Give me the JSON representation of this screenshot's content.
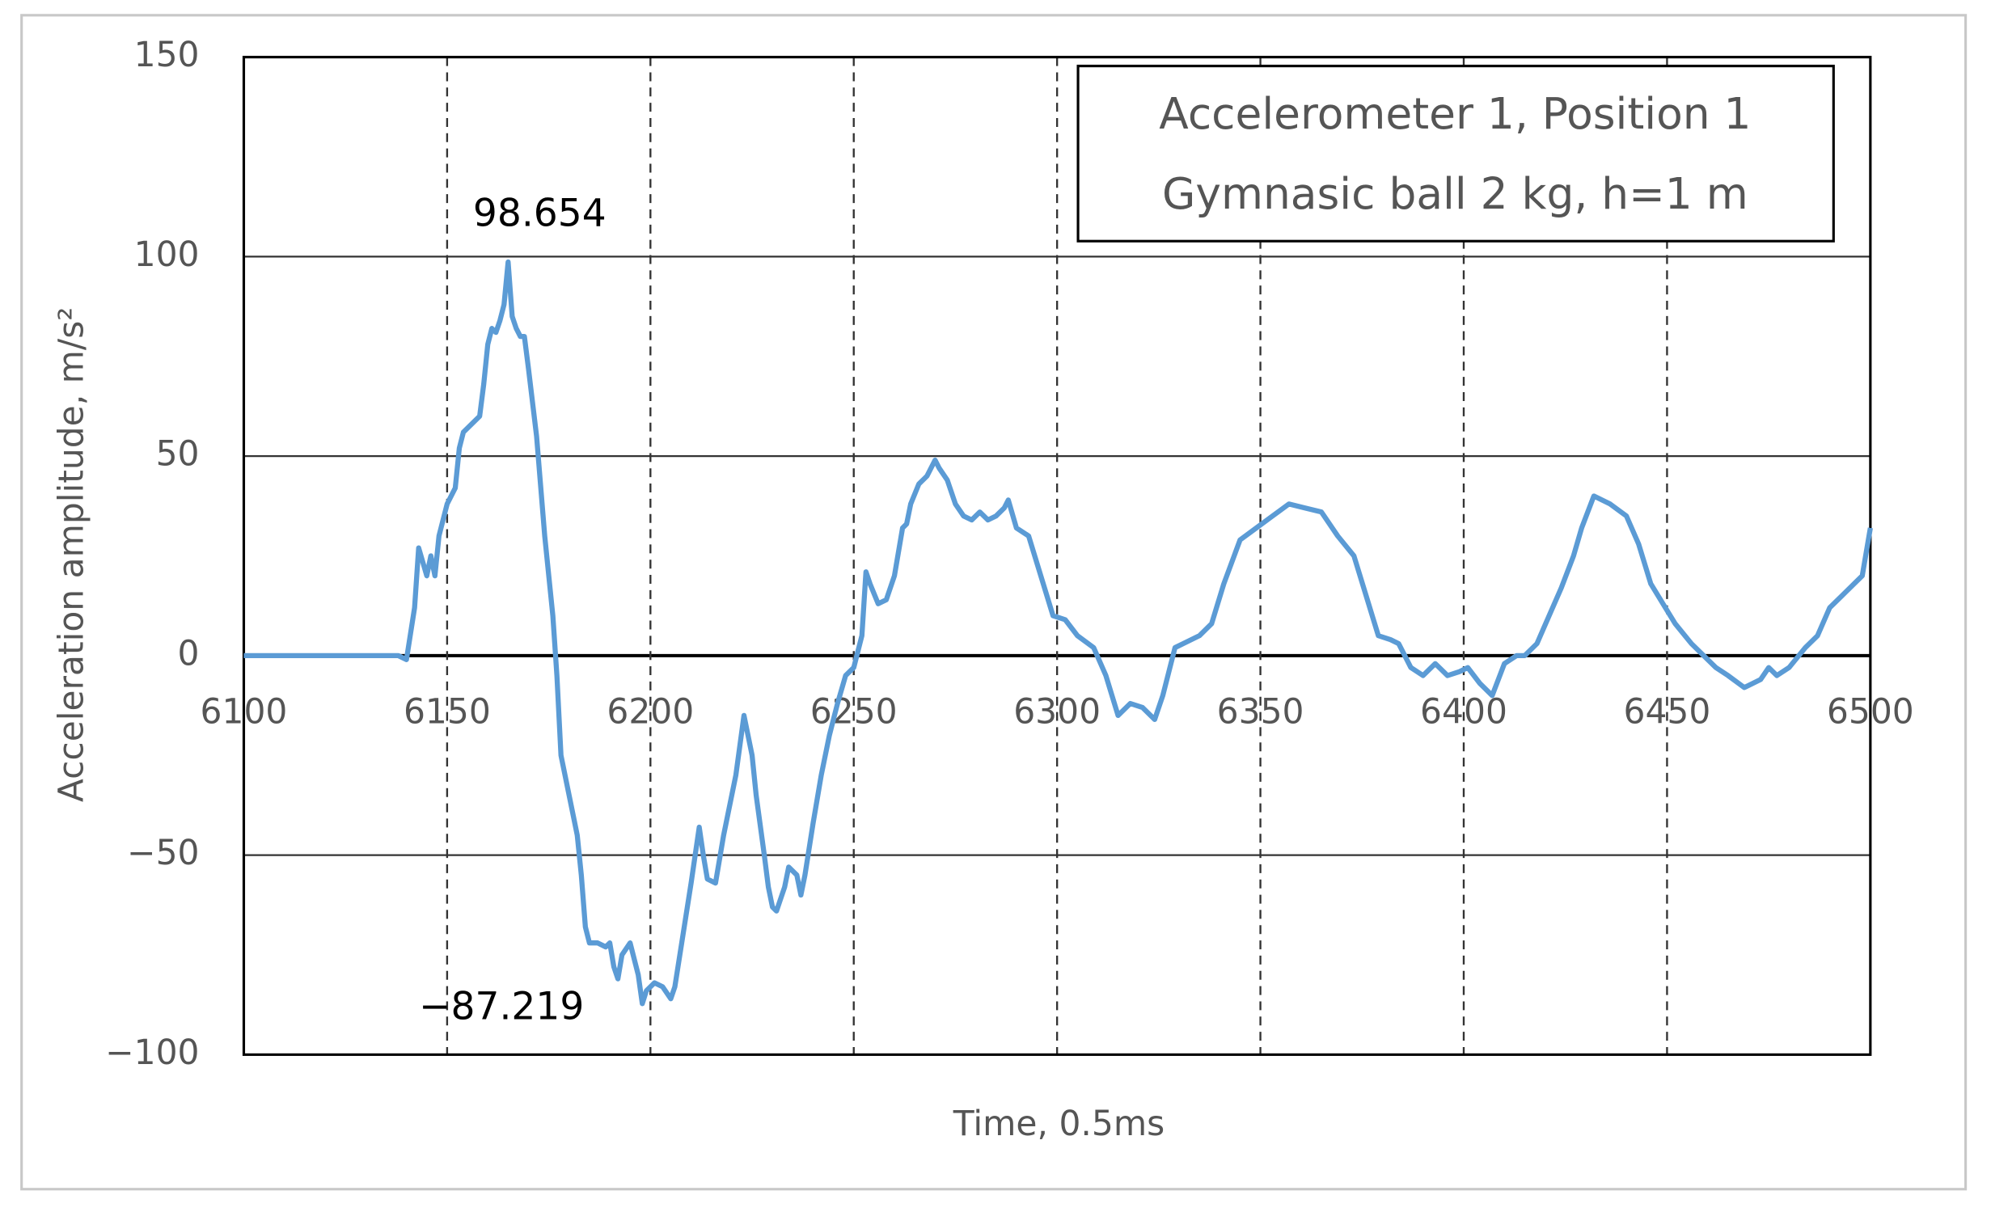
{
  "chart_data": {
    "type": "line",
    "title_lines": [
      "Accelerometer 1, Position 1",
      "Gymnasic ball 2 kg, h=1 m"
    ],
    "xlabel": "Time, 0.5ms",
    "ylabel": "Acceleration amplitude, m/s²",
    "annotations": [
      "98.654",
      "−87.219"
    ],
    "color": "#5b9bd5",
    "xlim": [
      6100,
      6500
    ],
    "xticks": [
      6100,
      6150,
      6200,
      6250,
      6300,
      6350,
      6400,
      6450,
      6500
    ],
    "ylim": [
      -100,
      150
    ],
    "yticks": [
      150,
      100,
      50,
      0,
      {
        "value": -50,
        "label": "−50"
      },
      {
        "value": -100,
        "label": "−100"
      }
    ],
    "grid": true,
    "x": [
      6100,
      6138,
      6140,
      6142,
      6143,
      6145,
      6146,
      6147,
      6148,
      6150,
      6151,
      6152,
      6153,
      6154,
      6156,
      6158,
      6159,
      6160,
      6161,
      6162,
      6163,
      6164,
      6165,
      6166,
      6167,
      6168,
      6169,
      6170,
      6172,
      6174,
      6176,
      6177,
      6178,
      6180,
      6182,
      6183,
      6184,
      6185,
      6187,
      6189,
      6190,
      6191,
      6192,
      6193,
      6195,
      6196,
      6197,
      6198,
      6199,
      6201,
      6203,
      6205,
      6206,
      6208,
      6210,
      6212,
      6213,
      6214,
      6216,
      6218,
      6219,
      6221,
      6223,
      6225,
      6226,
      6228,
      6229,
      6230,
      6231,
      6233,
      6234,
      6236,
      6237,
      6238,
      6240,
      6242,
      6244,
      6246,
      6248,
      6250,
      6252,
      6253,
      6254,
      6256,
      6258,
      6260,
      6262,
      6263,
      6264,
      6266,
      6268,
      6270,
      6271,
      6273,
      6275,
      6277,
      6279,
      6281,
      6283,
      6285,
      6287,
      6288,
      6290,
      6293,
      6296,
      6299,
      6302,
      6305,
      6309,
      6312,
      6315,
      6318,
      6321,
      6324,
      6326,
      6329,
      6331,
      6335,
      6338,
      6341,
      6345,
      6349,
      6353,
      6357,
      6361,
      6365,
      6369,
      6373,
      6376,
      6379,
      6382,
      6384,
      6387,
      6390,
      6393,
      6396,
      6399,
      6401,
      6404,
      6407,
      6410,
      6413,
      6415,
      6418,
      6421,
      6424,
      6427,
      6429,
      6432,
      6436,
      6440,
      6443,
      6446,
      6449,
      6452,
      6456,
      6459,
      6462,
      6465,
      6469,
      6473,
      6475,
      6477,
      6480,
      6484,
      6487,
      6490,
      6493,
      6496,
      6498,
      6500
    ],
    "values": [
      0,
      0,
      -1,
      12,
      27,
      20,
      25,
      20,
      30,
      38,
      40,
      42,
      52,
      56,
      58,
      60,
      68,
      78,
      82,
      81,
      84,
      88,
      98.654,
      85,
      82,
      80,
      80,
      72,
      55,
      30,
      10,
      -5,
      -25,
      -35,
      -45,
      -55,
      -68,
      -72,
      -72,
      -73,
      -72,
      -78,
      -81,
      -75,
      -72,
      -76,
      -80,
      -87.219,
      -84,
      -82,
      -83,
      -86,
      -83,
      -70,
      -57,
      -43,
      -50,
      -56,
      -57,
      -45,
      -40,
      -30,
      -15,
      -25,
      -35,
      -50,
      -58,
      -63,
      -64,
      -58,
      -53,
      -55,
      -60,
      -55,
      -42,
      -30,
      -20,
      -12,
      -5,
      -3,
      5,
      21,
      18,
      13,
      14,
      20,
      32,
      33,
      38,
      43,
      45,
      49,
      47,
      44,
      38,
      35,
      34,
      36,
      34,
      35,
      37,
      39,
      32,
      30,
      20,
      10,
      9,
      5,
      2,
      -5,
      -15,
      -12,
      -13,
      -16,
      -10,
      2,
      3,
      5,
      8,
      18,
      29,
      32,
      35,
      38,
      37,
      36,
      30,
      25,
      15,
      5,
      4,
      3,
      -3,
      -5,
      -2,
      -5,
      -4,
      -3,
      -7,
      -10,
      -2,
      0,
      0,
      3,
      10,
      17,
      25,
      32,
      40,
      38,
      35,
      28,
      18,
      13,
      8,
      3,
      0,
      -3,
      -5,
      -8,
      -6,
      -3,
      -5,
      -3,
      2,
      5,
      12,
      15,
      18,
      20,
      32
    ]
  }
}
